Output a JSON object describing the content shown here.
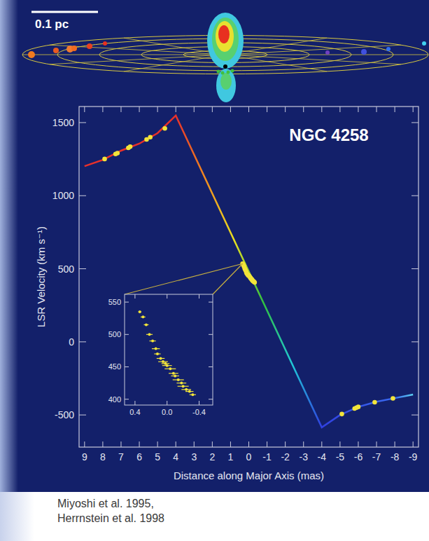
{
  "chart_data": {
    "type": "line",
    "title": "NGC 4258",
    "x_label": "Distance along Major Axis (mas)",
    "y_label": "LSR Velocity (km s⁻¹)",
    "scale_label": "0.1 pc",
    "source": [
      "Miyoshi et al. 1995,",
      "Herrnstein et al. 1998"
    ],
    "xlim": [
      9.3,
      -9.3
    ],
    "ylim": [
      -720,
      1610
    ],
    "xticks": [
      9,
      8,
      7,
      6,
      5,
      4,
      3,
      2,
      1,
      0,
      -1,
      -2,
      -3,
      -4,
      -5,
      -6,
      -7,
      -8,
      -9
    ],
    "yticks": [
      -500,
      0,
      500,
      1000,
      1500
    ],
    "grid": false,
    "series": [
      {
        "type": "line",
        "line_style": "solid",
        "x": [
          9,
          8,
          7,
          6,
          5,
          4,
          -4,
          -5,
          -6,
          -7,
          -8,
          -9
        ],
        "values": [
          1202,
          1245,
          1308,
          1356,
          1428,
          1548,
          -585,
          -500,
          -445,
          -410,
          -385,
          -360
        ]
      },
      {
        "type": "scatter",
        "marker": "circle",
        "color": "#f2e43a",
        "x": [
          7.9,
          7.3,
          7.2,
          6.6,
          6.5,
          5.6,
          5.4,
          4.6,
          -5.1,
          -5.8,
          -5.9,
          -6.0,
          -6.9,
          -7.9
        ],
        "values": [
          1251,
          1285,
          1291,
          1327,
          1335,
          1385,
          1400,
          1460,
          -494,
          -456,
          -450,
          -445,
          -413,
          -387
        ]
      },
      {
        "type": "scatter",
        "marker": "circle",
        "color": "#f2e43a",
        "x": [
          0.34,
          0.3,
          0.26,
          0.22,
          0.18,
          0.14,
          0.12,
          0.08,
          0.05,
          0.02,
          0.0,
          -0.04,
          -0.08,
          -0.1,
          -0.14,
          -0.18,
          -0.2,
          -0.24,
          -0.28,
          -0.32
        ],
        "values": [
          535,
          527,
          515,
          500,
          490,
          478,
          470,
          463,
          458,
          455,
          452,
          447,
          440,
          436,
          430,
          425,
          420,
          415,
          412,
          407
        ],
        "x_errors": [
          0.02,
          0.03,
          0.03,
          0.04,
          0.04,
          0.05,
          0.04,
          0.05,
          0.06,
          0.05,
          0.06,
          0.07,
          0.06,
          0.05,
          0.07,
          0.06,
          0.07,
          0.06,
          0.05,
          0.04
        ]
      }
    ],
    "inset": {
      "xlim": [
        0.53,
        -0.57
      ],
      "ylim": [
        391,
        562
      ],
      "xticks": [
        0.4,
        {
          "value": 0,
          "label": "0.0"
        },
        -0.4
      ],
      "yticks": [
        400,
        450,
        500,
        550
      ]
    }
  }
}
